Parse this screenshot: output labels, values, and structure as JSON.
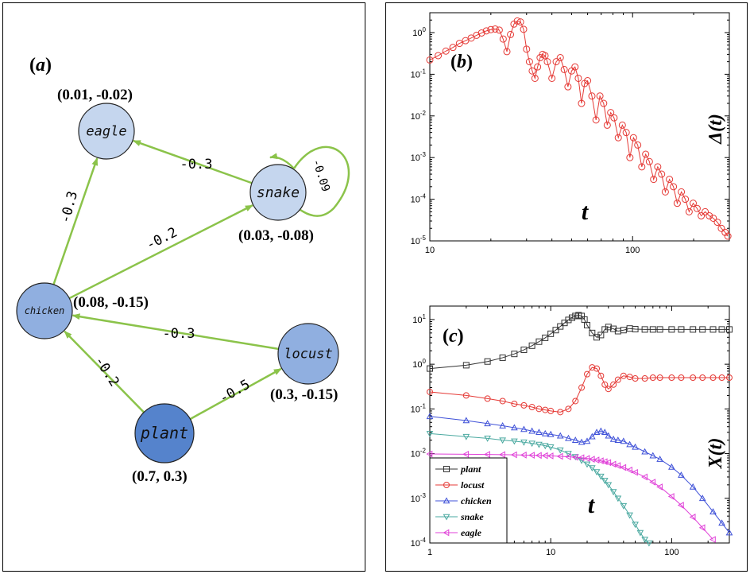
{
  "panel_a": {
    "letter_open": "(",
    "letter": "a",
    "letter_close": ")",
    "nodes": [
      {
        "id": "eagle",
        "label": "eagle",
        "color": "#c5d6ee",
        "coord_label": "(0.01, -0.02)"
      },
      {
        "id": "snake",
        "label": "snake",
        "color": "#c5d6ee",
        "coord_label": "(0.03, -0.08)"
      },
      {
        "id": "chicken",
        "label": "chicken",
        "color": "#90afe0",
        "coord_label": "(0.08, -0.15)"
      },
      {
        "id": "locust",
        "label": "locust",
        "color": "#90afe0",
        "coord_label": "(0.3, -0.15)"
      },
      {
        "id": "plant",
        "label": "plant",
        "color": "#5583cc",
        "coord_label": "(0.7, 0.3)"
      }
    ],
    "edges": [
      {
        "from": "snake",
        "to": "eagle",
        "weight": "-0.3"
      },
      {
        "from": "chicken",
        "to": "eagle",
        "weight": "-0.3"
      },
      {
        "from": "chicken",
        "to": "snake",
        "weight": "-0.2"
      },
      {
        "from": "locust",
        "to": "chicken",
        "weight": "-0.3"
      },
      {
        "from": "plant",
        "to": "chicken",
        "weight": "-0.2"
      },
      {
        "from": "plant",
        "to": "locust",
        "weight": "-0.5"
      },
      {
        "from": "snake",
        "to": "snake",
        "weight": "-0.09"
      }
    ],
    "edge_color": "#8bc34a"
  },
  "chart_data": [
    {
      "type": "scatter",
      "panel": "(b)",
      "xlabel": "t",
      "ylabel": "Δ(t)",
      "x_scale": "log",
      "y_scale": "log",
      "xlim": [
        10,
        300
      ],
      "ylim": [
        1e-05,
        3
      ],
      "x_ticks": [
        "10",
        "100"
      ],
      "y_ticks": [
        "10^0",
        "10^-1",
        "10^-2",
        "10^-3",
        "10^-4",
        "10^-5"
      ],
      "series": [
        {
          "color": "#e53935",
          "marker": "circle",
          "x": [
            10,
            11,
            12,
            13,
            14,
            15,
            16,
            17,
            18,
            19,
            20,
            21,
            22,
            23,
            24,
            25,
            26,
            27,
            28,
            29,
            30,
            31,
            32,
            33,
            34,
            35,
            36,
            37,
            38,
            40,
            42,
            44,
            46,
            48,
            50,
            52,
            54,
            56,
            58,
            60,
            63,
            66,
            69,
            72,
            75,
            78,
            81,
            85,
            89,
            93,
            97,
            101,
            106,
            111,
            116,
            121,
            127,
            133,
            139,
            145,
            152,
            159,
            166,
            174,
            182,
            190,
            199,
            208,
            218,
            228,
            239,
            250,
            262,
            274,
            286,
            295
          ],
          "y": [
            0.22,
            0.28,
            0.36,
            0.44,
            0.55,
            0.64,
            0.74,
            0.86,
            0.98,
            1.1,
            1.18,
            1.22,
            1.15,
            0.7,
            0.35,
            0.9,
            1.6,
            1.9,
            1.8,
            1.2,
            0.4,
            0.2,
            0.12,
            0.08,
            0.15,
            0.25,
            0.3,
            0.28,
            0.2,
            0.08,
            0.2,
            0.25,
            0.13,
            0.05,
            0.12,
            0.15,
            0.08,
            0.02,
            0.06,
            0.07,
            0.03,
            0.008,
            0.03,
            0.02,
            0.006,
            0.012,
            0.009,
            0.003,
            0.006,
            0.004,
            0.001,
            0.003,
            0.002,
            0.0006,
            0.0012,
            0.0008,
            0.0003,
            0.0006,
            0.0004,
            0.00015,
            0.0003,
            0.0002,
            8e-05,
            0.00015,
            0.0001,
            5e-05,
            8e-05,
            6e-05,
            4e-05,
            5e-05,
            4e-05,
            3.5e-05,
            2.8e-05,
            2e-05,
            1.6e-05,
            1.3e-05
          ]
        }
      ]
    },
    {
      "type": "line",
      "panel": "(c)",
      "xlabel": "t",
      "ylabel": "X(t)",
      "x_scale": "log",
      "y_scale": "log",
      "xlim": [
        1,
        300
      ],
      "ylim": [
        0.0001,
        20
      ],
      "x_ticks": [
        "1",
        "10",
        "100"
      ],
      "y_ticks": [
        "10^1",
        "10^0",
        "10^-1",
        "10^-2",
        "10^-3",
        "10^-4"
      ],
      "legend_position": "bottom-left",
      "series": [
        {
          "name": "plant",
          "color": "#333333",
          "marker": "square",
          "x": [
            1,
            2,
            3,
            4,
            5,
            6,
            7,
            8,
            9,
            10,
            11,
            12,
            13,
            14,
            15,
            16,
            17,
            18,
            19,
            20,
            22,
            24,
            26,
            28,
            30,
            33,
            36,
            40,
            45,
            50,
            60,
            70,
            80,
            100,
            120,
            150,
            180,
            220,
            260,
            300
          ],
          "y": [
            0.8,
            0.95,
            1.15,
            1.4,
            1.7,
            2.1,
            2.6,
            3.2,
            3.9,
            4.8,
            5.8,
            7,
            8.4,
            9.8,
            11,
            12,
            12.5,
            12,
            10,
            7.5,
            5,
            4,
            4.5,
            6,
            6.8,
            6.2,
            5.5,
            5.8,
            6.3,
            6.1,
            6,
            6,
            6,
            6,
            6,
            6,
            6,
            6,
            6,
            6
          ]
        },
        {
          "name": "locust",
          "color": "#e53935",
          "marker": "circle",
          "x": [
            1,
            2,
            3,
            4,
            5,
            6,
            7,
            8,
            9,
            10,
            12,
            14,
            16,
            18,
            20,
            22,
            24,
            26,
            28,
            30,
            33,
            36,
            40,
            45,
            50,
            60,
            70,
            80,
            100,
            120,
            150,
            180,
            220,
            260,
            300
          ],
          "y": [
            0.24,
            0.2,
            0.17,
            0.15,
            0.13,
            0.12,
            0.11,
            0.1,
            0.095,
            0.09,
            0.085,
            0.1,
            0.15,
            0.3,
            0.6,
            0.85,
            0.8,
            0.55,
            0.35,
            0.28,
            0.35,
            0.45,
            0.55,
            0.52,
            0.48,
            0.48,
            0.5,
            0.5,
            0.5,
            0.5,
            0.5,
            0.5,
            0.5,
            0.5,
            0.5
          ]
        },
        {
          "name": "chicken",
          "color": "#3f51d8",
          "marker": "triangle-up",
          "x": [
            1,
            2,
            3,
            4,
            5,
            6,
            7,
            8,
            9,
            10,
            12,
            14,
            16,
            18,
            20,
            22,
            24,
            26,
            28,
            30,
            33,
            36,
            40,
            45,
            50,
            60,
            70,
            80,
            100,
            120,
            150,
            180,
            220,
            260,
            300
          ],
          "y": [
            0.068,
            0.055,
            0.047,
            0.042,
            0.038,
            0.035,
            0.032,
            0.03,
            0.028,
            0.027,
            0.025,
            0.022,
            0.02,
            0.018,
            0.019,
            0.024,
            0.03,
            0.032,
            0.03,
            0.025,
            0.021,
            0.02,
            0.019,
            0.016,
            0.014,
            0.011,
            0.009,
            0.0075,
            0.005,
            0.0033,
            0.0018,
            0.001,
            0.0005,
            0.00028,
            0.00017
          ]
        },
        {
          "name": "snake",
          "color": "#4aa9a0",
          "marker": "triangle-down",
          "x": [
            1,
            2,
            3,
            4,
            5,
            6,
            7,
            8,
            9,
            10,
            12,
            14,
            16,
            18,
            20,
            22,
            24,
            26,
            28,
            30,
            33,
            36,
            40,
            45,
            50,
            55,
            60,
            65,
            70
          ],
          "y": [
            0.028,
            0.024,
            0.022,
            0.02,
            0.019,
            0.018,
            0.017,
            0.016,
            0.015,
            0.014,
            0.012,
            0.01,
            0.0085,
            0.007,
            0.0058,
            0.0048,
            0.0039,
            0.0031,
            0.0025,
            0.002,
            0.0014,
            0.001,
            0.00068,
            0.00042,
            0.00026,
            0.00017,
            0.00012,
            0.0001,
            9e-05
          ]
        },
        {
          "name": "eagle",
          "color": "#e040d8",
          "marker": "triangle-left",
          "x": [
            1,
            2,
            3,
            4,
            5,
            6,
            7,
            8,
            9,
            10,
            12,
            14,
            16,
            18,
            20,
            22,
            24,
            26,
            28,
            30,
            33,
            36,
            40,
            45,
            50,
            60,
            70,
            80,
            100,
            120,
            150,
            180,
            220,
            260,
            300
          ],
          "y": [
            0.0098,
            0.0097,
            0.0096,
            0.0095,
            0.0094,
            0.0093,
            0.0092,
            0.0091,
            0.009,
            0.0089,
            0.0087,
            0.0085,
            0.0083,
            0.0081,
            0.0078,
            0.0075,
            0.0072,
            0.0069,
            0.0066,
            0.0063,
            0.0058,
            0.0054,
            0.0049,
            0.0043,
            0.0038,
            0.003,
            0.0023,
            0.0018,
            0.0011,
            0.0007,
            0.00038,
            0.00022,
            0.00012,
            8e-05,
            6e-05
          ]
        }
      ]
    }
  ]
}
